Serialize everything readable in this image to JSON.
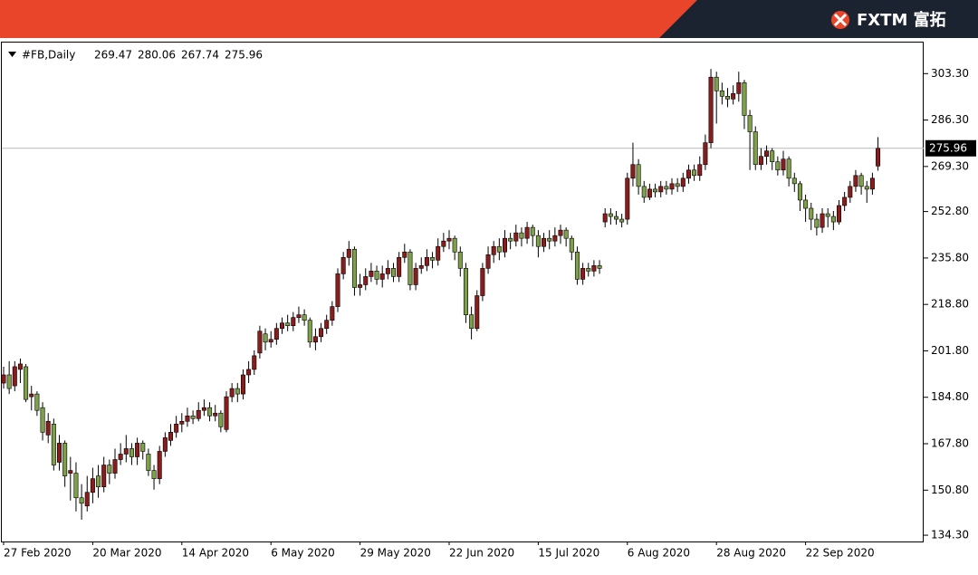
{
  "brand": "FXTM 富拓",
  "chart_data": {
    "type": "candlestick",
    "symbol": "#FB,Daily",
    "categories": [
      "27 Feb 2020",
      null,
      null,
      null,
      null,
      null,
      null,
      null,
      null,
      null,
      null,
      null,
      null,
      null,
      null,
      null,
      "20 Mar 2020",
      null,
      null,
      null,
      null,
      null,
      null,
      null,
      null,
      null,
      null,
      null,
      null,
      null,
      null,
      null,
      "14 Apr 2020",
      null,
      null,
      null,
      null,
      null,
      null,
      null,
      null,
      null,
      null,
      null,
      null,
      null,
      null,
      null,
      "6 May 2020",
      null,
      null,
      null,
      null,
      null,
      null,
      null,
      null,
      null,
      null,
      null,
      null,
      null,
      null,
      null,
      "29 May 2020",
      null,
      null,
      null,
      null,
      null,
      null,
      null,
      null,
      null,
      null,
      null,
      null,
      null,
      null,
      null,
      "22 Jun 2020",
      null,
      null,
      null,
      null,
      null,
      null,
      null,
      null,
      null,
      null,
      null,
      null,
      null,
      null,
      null,
      "15 Jul 2020",
      null,
      null,
      null,
      null,
      null,
      null,
      null,
      null,
      null,
      null,
      null,
      null,
      null,
      null,
      null,
      "6 Aug 2020",
      null,
      null,
      null,
      null,
      null,
      null,
      null,
      null,
      null,
      null,
      null,
      null,
      null,
      null,
      null,
      "28 Aug 2020",
      null,
      null,
      null,
      null,
      null,
      null,
      null,
      null,
      null,
      null,
      null,
      null,
      null,
      null,
      null,
      "22 Sep 2020",
      null,
      null,
      null,
      null,
      null,
      null,
      null,
      null,
      null,
      null,
      null,
      null,
      null
    ],
    "open": [
      190,
      193,
      189,
      195,
      196,
      185,
      186,
      181,
      171,
      175,
      161,
      168,
      157,
      157,
      148,
      145,
      150,
      156,
      152,
      160,
      157,
      162,
      164,
      166,
      163,
      168,
      164,
      158,
      155,
      165,
      169,
      172,
      175,
      176,
      178,
      177,
      180,
      181,
      178,
      179,
      173,
      185,
      188,
      186,
      193,
      195,
      201,
      208,
      205,
      206,
      210,
      212,
      211,
      214,
      215,
      213,
      205,
      207,
      210,
      213,
      218,
      230,
      236,
      239,
      225,
      226,
      229,
      231,
      228,
      230,
      232,
      229,
      236,
      238,
      226,
      232,
      233,
      236,
      235,
      240,
      242,
      243,
      238,
      232,
      215,
      210,
      222,
      232,
      237,
      240,
      238,
      243,
      242,
      245,
      243,
      247,
      244,
      240,
      243,
      242,
      244,
      246,
      243,
      238,
      228,
      232,
      231,
      233,
      249,
      252,
      251,
      250,
      250,
      265,
      270,
      262,
      258,
      261,
      260,
      262,
      261,
      263,
      262,
      265,
      268,
      266,
      270,
      278,
      302,
      297,
      295,
      294,
      296,
      300,
      288,
      282,
      270,
      273,
      275,
      271,
      268,
      272,
      265,
      263,
      257,
      254,
      250,
      247,
      252,
      251,
      249,
      255,
      258,
      262,
      266,
      262,
      261,
      269.47
    ],
    "high": [
      196,
      198,
      198,
      199,
      197,
      189,
      187,
      183,
      179,
      177,
      171,
      169,
      163,
      161,
      153,
      156,
      159,
      160,
      163,
      162,
      166,
      168,
      171,
      168,
      170,
      169,
      166,
      160,
      167,
      172,
      175,
      178,
      179,
      181,
      180,
      183,
      184,
      183,
      182,
      180,
      187,
      190,
      190,
      195,
      198,
      202,
      211,
      210,
      209,
      212,
      214,
      215,
      216,
      218,
      217,
      214,
      210,
      212,
      215,
      220,
      232,
      238,
      242,
      240,
      230,
      232,
      234,
      233,
      233,
      235,
      234,
      238,
      241,
      239,
      234,
      236,
      239,
      238,
      243,
      245,
      246,
      244,
      240,
      234,
      218,
      224,
      234,
      240,
      242,
      243,
      246,
      245,
      248,
      247,
      249,
      248,
      246,
      245,
      246,
      247,
      248,
      247,
      244,
      240,
      234,
      234,
      235,
      235,
      254,
      254,
      253,
      252,
      267,
      278,
      272,
      264,
      263,
      263,
      264,
      264,
      265,
      265,
      267,
      270,
      270,
      273,
      281,
      305,
      304,
      300,
      298,
      299,
      304,
      301,
      290,
      284,
      276,
      277,
      276,
      273,
      275,
      273,
      267,
      264,
      259,
      256,
      252,
      254,
      254,
      253,
      257,
      260,
      264,
      268,
      267,
      264,
      267,
      280.06
    ],
    "low": [
      188,
      186,
      187,
      190,
      183,
      180,
      178,
      169,
      168,
      158,
      158,
      152,
      147,
      143,
      140,
      143,
      146,
      148,
      150,
      153,
      155,
      160,
      161,
      160,
      160,
      162,
      156,
      151,
      153,
      163,
      167,
      170,
      172,
      174,
      175,
      176,
      178,
      176,
      176,
      172,
      172,
      183,
      183,
      184,
      190,
      193,
      199,
      202,
      203,
      204,
      208,
      209,
      209,
      212,
      211,
      203,
      202,
      205,
      208,
      211,
      216,
      228,
      233,
      222,
      222,
      224,
      227,
      226,
      225,
      228,
      227,
      227,
      234,
      224,
      224,
      230,
      231,
      232,
      233,
      238,
      239,
      235,
      229,
      212,
      206,
      209,
      220,
      230,
      234,
      235,
      236,
      239,
      240,
      240,
      241,
      240,
      236,
      238,
      239,
      240,
      241,
      240,
      235,
      226,
      226,
      229,
      229,
      230,
      247,
      248,
      248,
      247,
      248,
      262,
      259,
      256,
      257,
      258,
      258,
      259,
      259,
      260,
      260,
      263,
      264,
      264,
      268,
      276,
      285,
      292,
      291,
      292,
      293,
      283,
      268,
      268,
      268,
      270,
      268,
      266,
      266,
      262,
      260,
      253,
      249,
      246,
      244,
      245,
      247,
      246,
      248,
      253,
      256,
      260,
      259,
      256,
      259,
      267.74
    ],
    "close": [
      193,
      188,
      196,
      197,
      184,
      186,
      180,
      172,
      176,
      160,
      168,
      156,
      158,
      148,
      146,
      150,
      155,
      152,
      160,
      157,
      162,
      164,
      166,
      163,
      168,
      165,
      158,
      155,
      165,
      170,
      172,
      175,
      176,
      178,
      177,
      180,
      181,
      178,
      179,
      174,
      185,
      188,
      186,
      193,
      195,
      200,
      209,
      205,
      206,
      210,
      212,
      211,
      214,
      215,
      213,
      205,
      207,
      210,
      213,
      218,
      230,
      236,
      239,
      225,
      226,
      229,
      231,
      228,
      230,
      232,
      229,
      236,
      238,
      226,
      232,
      233,
      236,
      235,
      240,
      242,
      243,
      238,
      232,
      215,
      210,
      222,
      232,
      237,
      240,
      238,
      243,
      242,
      245,
      243,
      247,
      244,
      240,
      243,
      242,
      244,
      246,
      243,
      238,
      228,
      232,
      231,
      233,
      232,
      252,
      251,
      250,
      249,
      265,
      270,
      262,
      258,
      261,
      260,
      262,
      261,
      263,
      262,
      265,
      268,
      266,
      270,
      278,
      302,
      297,
      295,
      294,
      296,
      300,
      288,
      282,
      270,
      273,
      275,
      271,
      268,
      272,
      265,
      263,
      257,
      254,
      250,
      247,
      252,
      251,
      249,
      255,
      258,
      262,
      266,
      262,
      261,
      265,
      275.96
    ],
    "up_color": "#8b1c1c",
    "down_color": "#7ea04a",
    "ylim": [
      132,
      315
    ],
    "yticks": [
      {
        "value": 134.3,
        "label": "134.30"
      },
      {
        "value": 150.8,
        "label": "150.80"
      },
      {
        "value": 167.8,
        "label": "167.80"
      },
      {
        "value": 184.8,
        "label": "184.80"
      },
      {
        "value": 201.8,
        "label": "201.80"
      },
      {
        "value": 218.8,
        "label": "218.80"
      },
      {
        "value": 235.8,
        "label": "235.80"
      },
      {
        "value": 252.8,
        "label": "252.80"
      },
      {
        "value": 269.3,
        "label": "269.30"
      },
      {
        "value": 286.3,
        "label": "286.30"
      },
      {
        "value": 303.3,
        "label": "303.30"
      }
    ]
  }
}
